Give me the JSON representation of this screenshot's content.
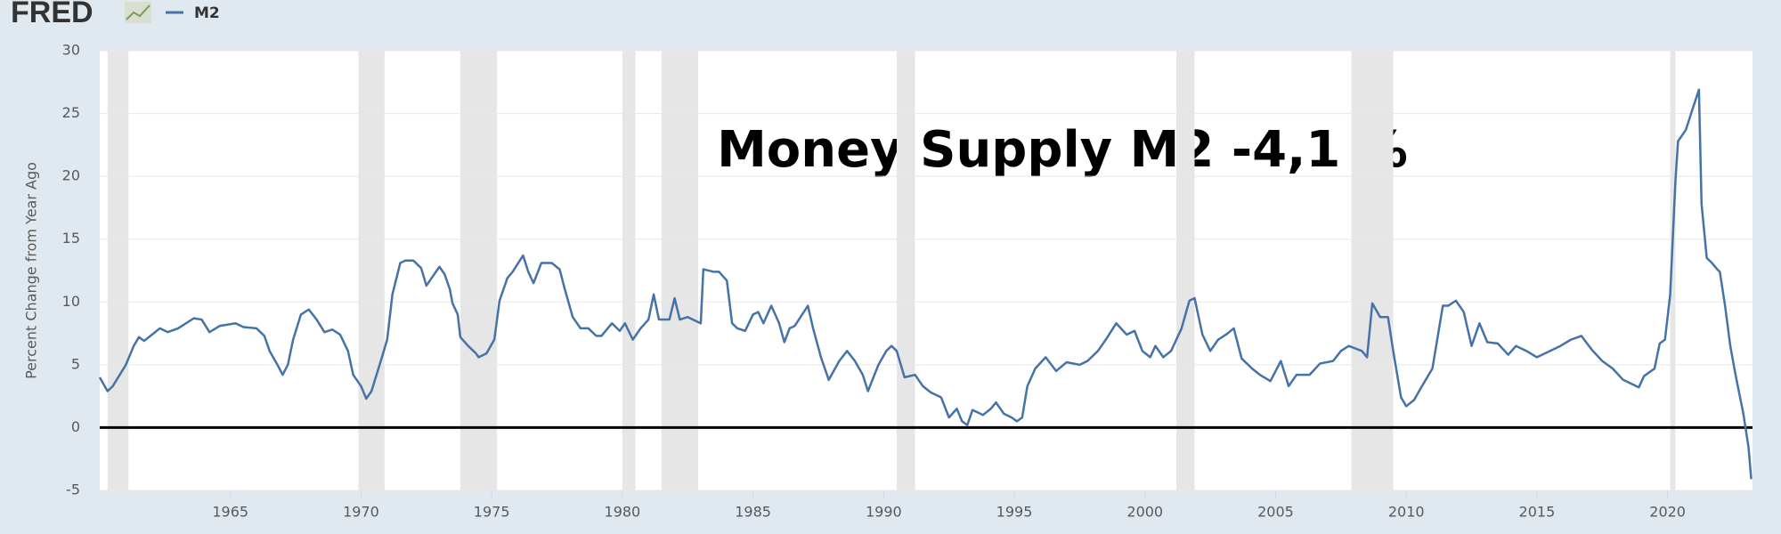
{
  "chart_data": {
    "type": "line",
    "logo": "FRED",
    "annotation": "Money Supply M2 -4,1 %",
    "y_label": "Percent Change from Year Ago",
    "xlim": [
      1960,
      2023.25
    ],
    "ylim": [
      -5,
      30
    ],
    "xticks": [
      1965,
      1970,
      1975,
      1980,
      1985,
      1990,
      1995,
      2000,
      2005,
      2010,
      2015,
      2020
    ],
    "yticks": [
      -5,
      0,
      5,
      10,
      15,
      20,
      25,
      30
    ],
    "grid": true,
    "recessions": [
      [
        1960.3,
        1961.1
      ],
      [
        1969.9,
        1970.9
      ],
      [
        1973.8,
        1975.2
      ],
      [
        1980.0,
        1980.5
      ],
      [
        1981.5,
        1982.9
      ],
      [
        1990.5,
        1991.2
      ],
      [
        2001.2,
        2001.9
      ],
      [
        2007.9,
        2009.5
      ],
      [
        2020.1,
        2020.3
      ]
    ],
    "x": [
      1960.0,
      1960.3,
      1960.5,
      1961.0,
      1961.3,
      1961.5,
      1961.7,
      1962.0,
      1962.3,
      1962.6,
      1963.0,
      1963.6,
      1963.9,
      1964.2,
      1964.6,
      1965.2,
      1965.5,
      1966.0,
      1966.3,
      1966.5,
      1966.8,
      1967.0,
      1967.2,
      1967.4,
      1967.7,
      1968.0,
      1968.3,
      1968.6,
      1968.9,
      1969.2,
      1969.5,
      1969.7,
      1970.0,
      1970.2,
      1970.4,
      1970.8,
      1971.0,
      1971.2,
      1971.5,
      1971.7,
      1972.0,
      1972.3,
      1972.5,
      1972.7,
      1973.0,
      1973.2,
      1973.4,
      1973.5,
      1973.7,
      1973.8,
      1974.1,
      1974.4,
      1974.5,
      1974.8,
      1975.1,
      1975.3,
      1975.6,
      1975.8,
      1976.2,
      1976.4,
      1976.6,
      1976.9,
      1977.3,
      1977.6,
      1977.8,
      1978.1,
      1978.4,
      1978.7,
      1979.0,
      1979.2,
      1979.6,
      1979.9,
      1980.1,
      1980.4,
      1980.7,
      1981.0,
      1981.2,
      1981.4,
      1981.8,
      1982.0,
      1982.2,
      1982.5,
      1982.8,
      1983.0,
      1983.1,
      1983.5,
      1983.7,
      1984.0,
      1984.2,
      1984.4,
      1984.7,
      1985.0,
      1985.2,
      1985.4,
      1985.7,
      1986.0,
      1986.2,
      1986.4,
      1986.6,
      1987.1,
      1987.3,
      1987.6,
      1987.9,
      1988.3,
      1988.6,
      1988.9,
      1989.2,
      1989.4,
      1989.8,
      1990.1,
      1990.3,
      1990.5,
      1990.8,
      1991.2,
      1991.5,
      1991.8,
      1992.2,
      1992.5,
      1992.8,
      1993.0,
      1993.2,
      1993.4,
      1993.8,
      1994.1,
      1994.3,
      1994.6,
      1994.9,
      1995.1,
      1995.3,
      1995.5,
      1995.8,
      1996.2,
      1996.6,
      1997.0,
      1997.5,
      1997.8,
      1998.2,
      1998.5,
      1998.9,
      1999.3,
      1999.6,
      1999.9,
      2000.2,
      2000.4,
      2000.7,
      2001.0,
      2001.4,
      2001.7,
      2001.9,
      2002.2,
      2002.5,
      2002.8,
      2003.1,
      2003.4,
      2003.7,
      2004.1,
      2004.4,
      2004.8,
      2005.2,
      2005.5,
      2005.8,
      2006.3,
      2006.7,
      2007.2,
      2007.5,
      2007.8,
      2008.3,
      2008.5,
      2008.7,
      2009.0,
      2009.3,
      2009.5,
      2009.8,
      2010.0,
      2010.3,
      2010.6,
      2011.0,
      2011.4,
      2011.6,
      2011.9,
      2012.2,
      2012.5,
      2012.8,
      2013.1,
      2013.5,
      2013.9,
      2014.2,
      2014.6,
      2015.0,
      2015.5,
      2015.9,
      2016.3,
      2016.7,
      2017.1,
      2017.5,
      2017.9,
      2018.3,
      2018.6,
      2018.9,
      2019.1,
      2019.5,
      2019.7,
      2019.9,
      2020.1,
      2020.3,
      2020.4,
      2020.7,
      2020.9,
      2021.2,
      2021.3,
      2021.5,
      2021.7,
      2021.9,
      2022.0,
      2022.2,
      2022.4,
      2022.6,
      2022.9,
      2023.1,
      2023.2
    ],
    "series": [
      {
        "name": "M2",
        "color": "#4572a7",
        "values": [
          4.0,
          2.9,
          3.3,
          5.0,
          6.5,
          7.2,
          6.9,
          7.4,
          7.9,
          7.6,
          7.9,
          8.7,
          8.6,
          7.6,
          8.1,
          8.3,
          8.0,
          7.9,
          7.3,
          6.1,
          5.0,
          4.2,
          5.0,
          7.0,
          9.0,
          9.4,
          8.6,
          7.6,
          7.8,
          7.4,
          6.1,
          4.2,
          3.3,
          2.3,
          2.9,
          5.6,
          7.0,
          10.6,
          13.1,
          13.3,
          13.3,
          12.7,
          11.3,
          11.9,
          12.8,
          12.2,
          11.0,
          9.9,
          9.0,
          7.2,
          6.5,
          5.9,
          5.6,
          5.9,
          7.0,
          10.1,
          11.9,
          12.4,
          13.7,
          12.4,
          11.5,
          13.1,
          13.1,
          12.6,
          11.0,
          8.8,
          7.9,
          7.9,
          7.3,
          7.3,
          8.3,
          7.7,
          8.3,
          7.0,
          7.9,
          8.6,
          10.6,
          8.6,
          8.6,
          10.3,
          8.6,
          8.8,
          8.5,
          8.3,
          12.6,
          12.4,
          12.4,
          11.7,
          8.3,
          7.9,
          7.7,
          9.0,
          9.2,
          8.3,
          9.7,
          8.3,
          6.8,
          7.9,
          8.1,
          9.7,
          7.9,
          5.6,
          3.8,
          5.3,
          6.1,
          5.3,
          4.2,
          2.9,
          5.0,
          6.1,
          6.5,
          6.1,
          4.0,
          4.2,
          3.3,
          2.8,
          2.4,
          0.8,
          1.5,
          0.5,
          0.2,
          1.4,
          1.0,
          1.5,
          2.0,
          1.1,
          0.8,
          0.5,
          0.8,
          3.3,
          4.7,
          5.6,
          4.5,
          5.2,
          5.0,
          5.3,
          6.1,
          7.0,
          8.3,
          7.4,
          7.7,
          6.1,
          5.6,
          6.5,
          5.6,
          6.1,
          7.9,
          10.1,
          10.3,
          7.4,
          6.1,
          7.0,
          7.4,
          7.9,
          5.5,
          4.7,
          4.2,
          3.7,
          5.3,
          3.3,
          4.2,
          4.2,
          5.1,
          5.3,
          6.1,
          6.5,
          6.1,
          5.6,
          9.9,
          8.8,
          8.8,
          6.1,
          2.4,
          1.7,
          2.2,
          3.3,
          4.7,
          9.7,
          9.7,
          10.1,
          9.2,
          6.5,
          8.3,
          6.8,
          6.7,
          5.8,
          6.5,
          6.1,
          5.6,
          6.1,
          6.5,
          7.0,
          7.3,
          6.2,
          5.3,
          4.7,
          3.8,
          3.5,
          3.2,
          4.1,
          4.7,
          6.7,
          7.0,
          10.6,
          19.6,
          22.8,
          23.7,
          25.0,
          26.9,
          17.8,
          13.5,
          13.1,
          12.6,
          12.4,
          9.7,
          6.5,
          4.2,
          1.1,
          -1.6,
          -4.1
        ]
      }
    ]
  }
}
